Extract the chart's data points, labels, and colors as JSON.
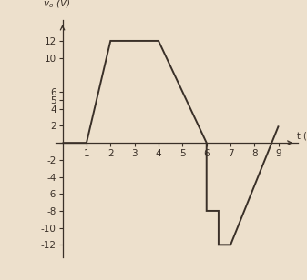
{
  "waveform_x": [
    0,
    1,
    2,
    4,
    6,
    6,
    6.5,
    6.5,
    7,
    9
  ],
  "waveform_y": [
    0,
    0,
    12,
    12,
    0,
    -8,
    -8,
    -12,
    -12,
    2
  ],
  "xlim": [
    -0.3,
    9.8
  ],
  "ylim": [
    -13.5,
    14.5
  ],
  "xticks": [
    1,
    2,
    3,
    4,
    5,
    6,
    7,
    8,
    9
  ],
  "yticks": [
    -12,
    -10,
    -8,
    -6,
    -4,
    -2,
    0,
    2,
    4,
    5,
    6,
    10,
    12
  ],
  "ytick_labels": [
    "-12",
    "-10",
    "-8",
    "-6",
    "-4",
    "-2",
    "",
    "2",
    "4",
    "5",
    "6",
    "10",
    "12"
  ],
  "line_color": "#3a3028",
  "background_color": "#ede0cc",
  "axis_color": "#3a3028",
  "line_width": 1.4,
  "font_size": 7.5
}
